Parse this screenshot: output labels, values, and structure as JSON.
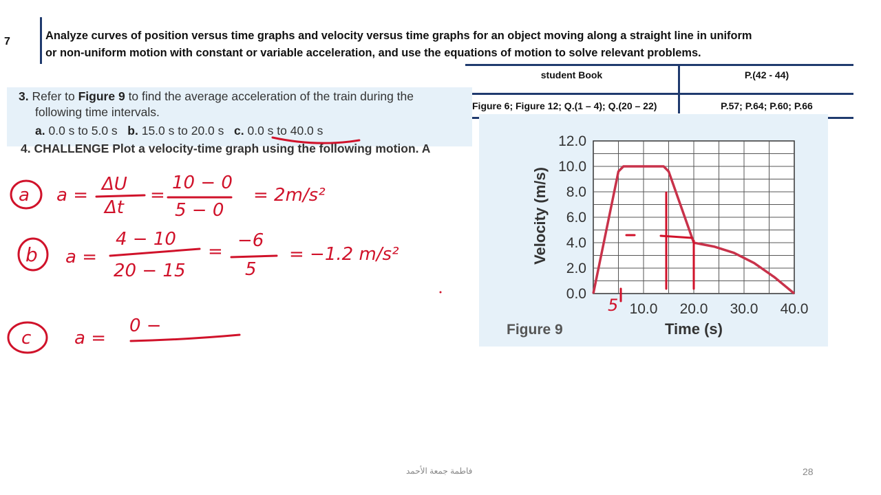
{
  "header": {
    "row_number": "7",
    "objective_line1": "Analyze curves of position versus time graphs and velocity versus time graphs for an object moving along a straight line in uniform",
    "objective_line2": "or non-uniform motion with constant or variable acceleration, and use the equations of motion to solve relevant problems."
  },
  "reference_table": {
    "head_left": "student Book",
    "head_right": "P.(42 - 44)",
    "row_left": "Figure 6; Figure 12; Q.(1 – 4); Q.(20 – 22)",
    "row_right": "P.57; P.64; P.60; P.66"
  },
  "question": {
    "number": "3.",
    "text_a": "Refer to",
    "figure_ref": "Figure 9",
    "text_b": "to find the average acceleration of the train during the",
    "text_c": "following time intervals.",
    "a_label": "a.",
    "a_text": "0.0 s to 5.0 s",
    "b_label": "b.",
    "b_text": "15.0 s to 20.0 s",
    "c_label": "c.",
    "c_text": "0.0 s to 40.0 s",
    "next_cut": "4. CHALLENGE Plot a velocity-time graph using the following motion. A"
  },
  "handwriting": {
    "a_label": "a",
    "a_equation": "a = ΔU/Δt = (10 − 0)/(5 − 0) = 2m/s²",
    "b_label": "b",
    "b_equation": "a = (4 − 10)/(20 − 15) = −6/5 = −1.2 m/s²",
    "c_label": "c",
    "c_equation": "a = (0 − ",
    "graph_mark": "5",
    "ink_color": "#d0122a"
  },
  "chart_data": {
    "type": "line",
    "title": "Figure 9",
    "xlabel": "Time (s)",
    "ylabel": "Velocity (m/s)",
    "xlim": [
      0,
      40
    ],
    "ylim": [
      0,
      12
    ],
    "x_ticks": [
      "10.0",
      "20.0",
      "30.0",
      "40.0"
    ],
    "y_ticks": [
      "0.0",
      "2.0",
      "4.0",
      "6.0",
      "8.0",
      "10.0",
      "12.0"
    ],
    "grid": true,
    "series": [
      {
        "color": "#c8324a",
        "x": [
          0,
          5,
          6,
          10,
          14,
          15,
          20,
          24,
          28,
          32,
          36,
          40
        ],
        "y": [
          0,
          9.6,
          10,
          10,
          10,
          9.6,
          4,
          3.7,
          3.2,
          2.4,
          1.3,
          0
        ]
      }
    ]
  },
  "footer": {
    "author": "فاطمة جمعة الأحمد",
    "page_number": "28"
  }
}
